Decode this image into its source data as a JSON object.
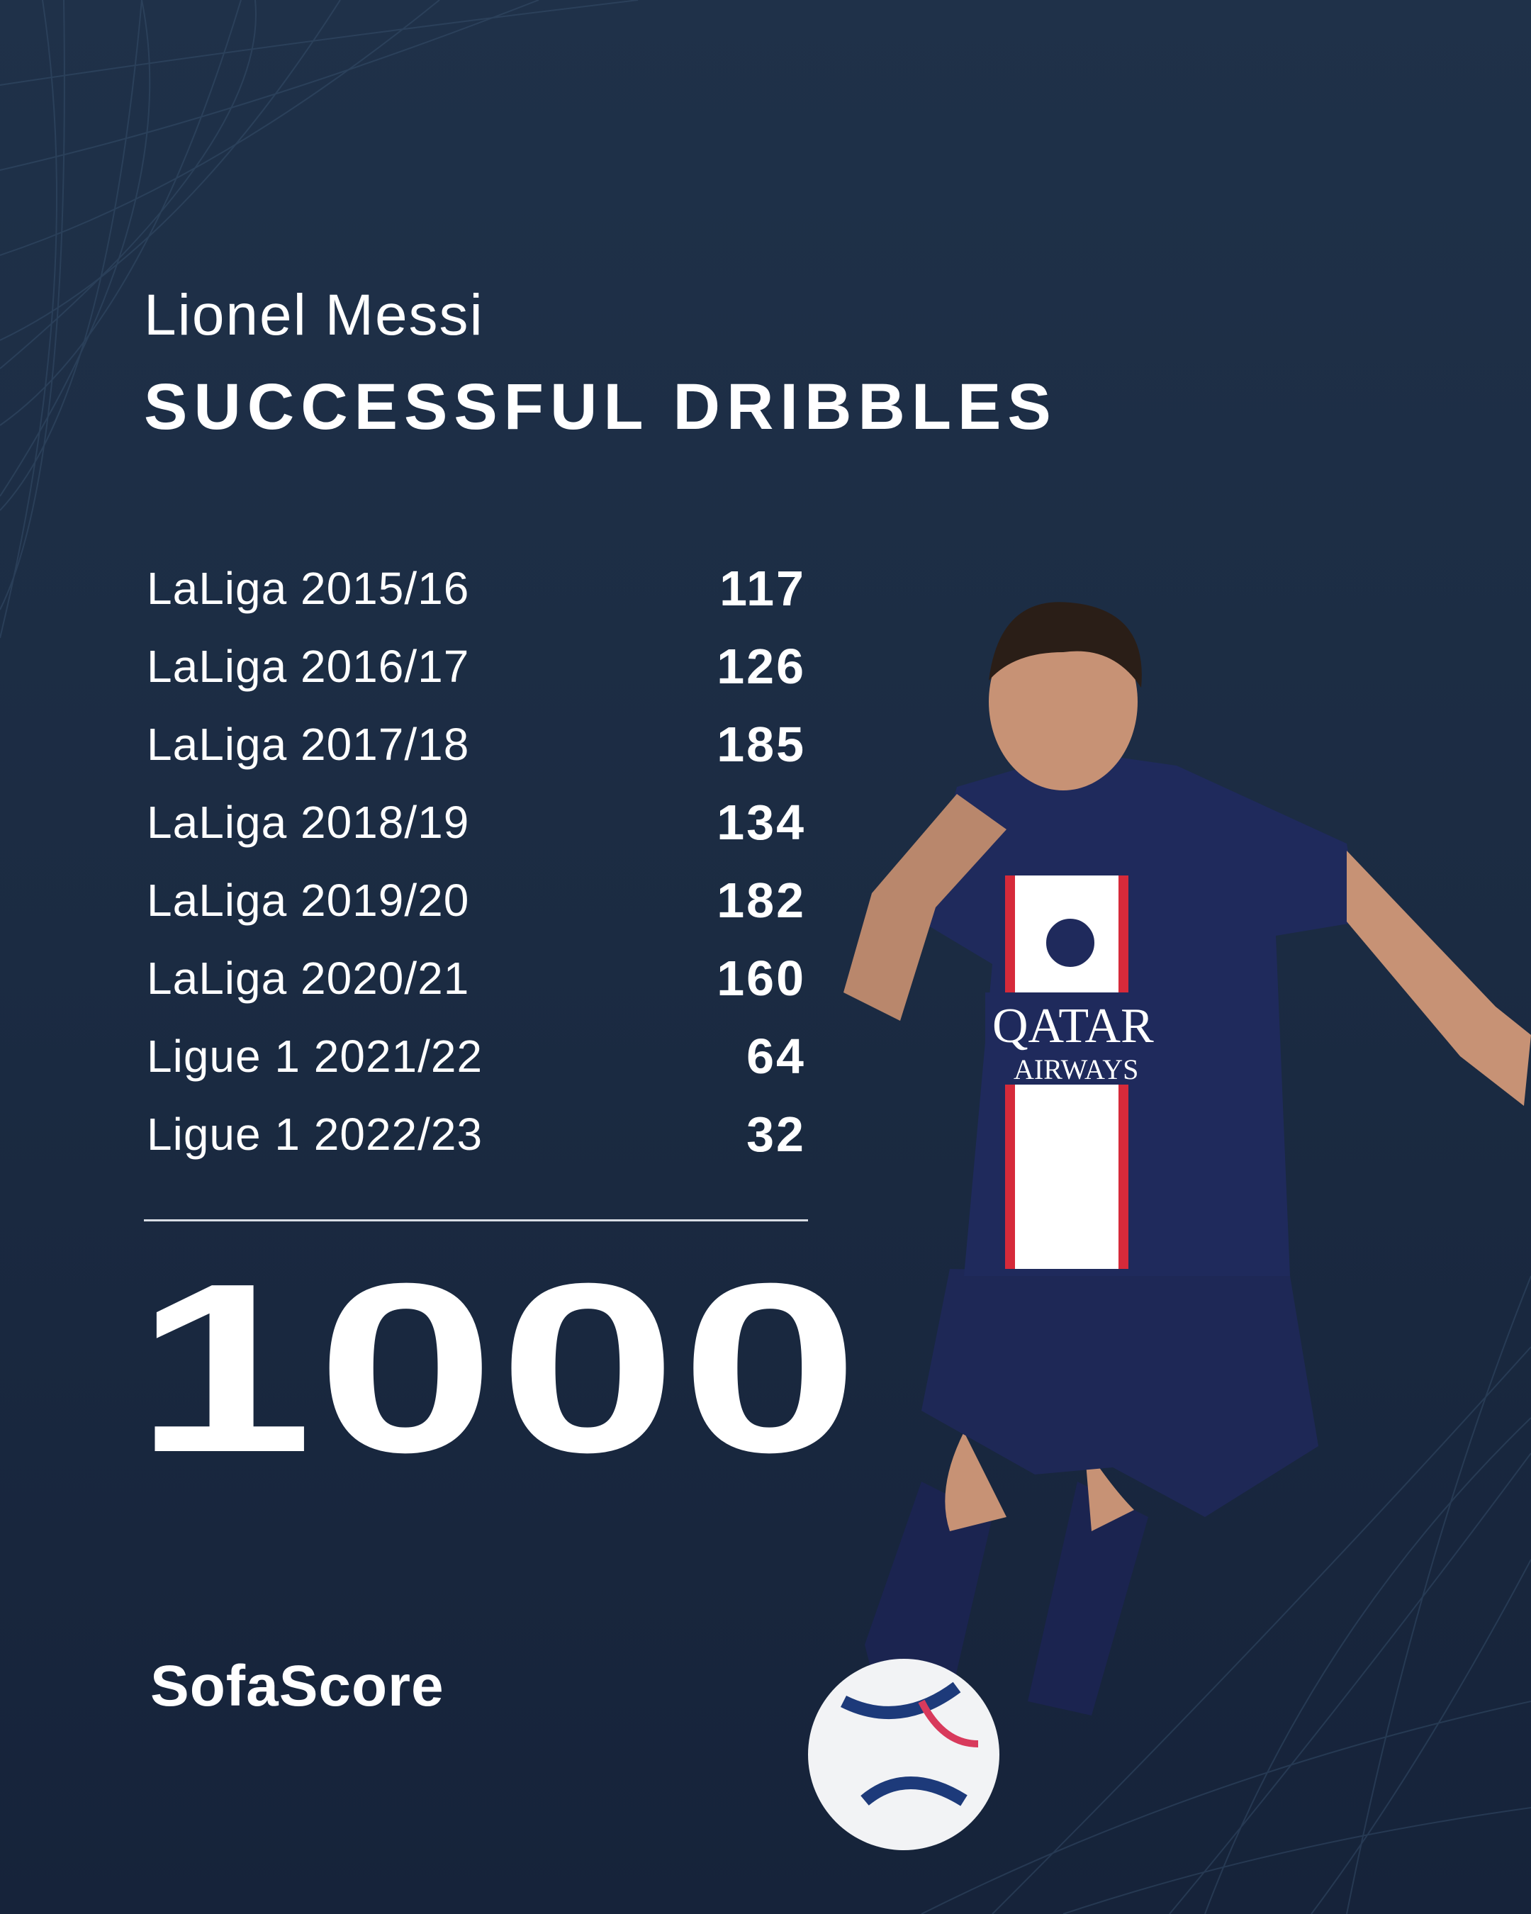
{
  "header": {
    "player_name": "Lionel Messi",
    "stat_title": "SUCCESSFUL DRIBBLES"
  },
  "seasons": [
    {
      "label": "LaLiga 2015/16",
      "value": "117"
    },
    {
      "label": "LaLiga 2016/17",
      "value": "126"
    },
    {
      "label": "LaLiga 2017/18",
      "value": "185"
    },
    {
      "label": "LaLiga 2018/19",
      "value": "134"
    },
    {
      "label": "LaLiga 2019/20",
      "value": "182"
    },
    {
      "label": "LaLiga 2020/21",
      "value": "160"
    },
    {
      "label": "Ligue 1 2021/22",
      "value": "64"
    },
    {
      "label": "Ligue 1 2022/23",
      "value": "32"
    }
  ],
  "total": "1000",
  "brand": "SofaScore",
  "colors": {
    "background": "#1c2d44",
    "text": "#ffffff",
    "jersey": "#1f2a5c",
    "stripe_red": "#d62a3a"
  }
}
